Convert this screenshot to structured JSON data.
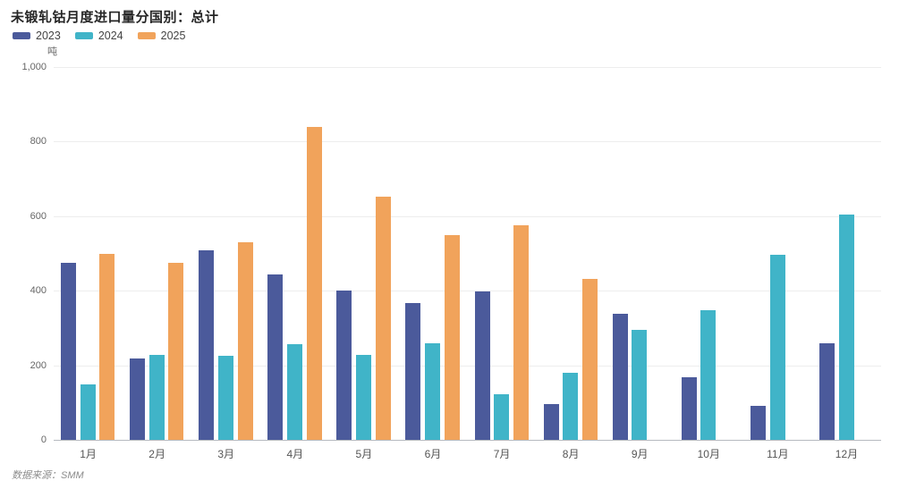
{
  "header": {
    "title": "未锻轧钴月度进口量分国别：总计"
  },
  "footer": {
    "source": "数据来源：SMM"
  },
  "chart_data": {
    "type": "bar",
    "title": "未锻轧钴月度进口量分国别：总计",
    "unit_label": "吨",
    "categories": [
      "1月",
      "2月",
      "3月",
      "4月",
      "5月",
      "6月",
      "7月",
      "8月",
      "9月",
      "10月",
      "11月",
      "12月"
    ],
    "series": [
      {
        "name": "2023",
        "color": "#4b5a9b",
        "values": [
          475,
          218,
          508,
          443,
          400,
          368,
          397,
          95,
          337,
          167,
          90,
          260
        ]
      },
      {
        "name": "2024",
        "color": "#40b4c8",
        "values": [
          148,
          227,
          225,
          257,
          228,
          260,
          122,
          180,
          295,
          348,
          497,
          605
        ]
      },
      {
        "name": "2025",
        "color": "#f1a35b",
        "values": [
          500,
          475,
          530,
          840,
          652,
          548,
          575,
          432,
          null,
          null,
          null,
          null
        ]
      }
    ],
    "ylim": [
      0,
      1000
    ],
    "ytick_values": [
      0,
      200,
      400,
      600,
      800,
      1000
    ],
    "ytick_labels": [
      "0",
      "200",
      "400",
      "600",
      "800",
      "1,000"
    ],
    "grid": true,
    "legend_position": "top-left",
    "layout_colors": {
      "gridline": "#ededed",
      "axis_line": "#b6babf",
      "tick_text": "#666666"
    }
  }
}
